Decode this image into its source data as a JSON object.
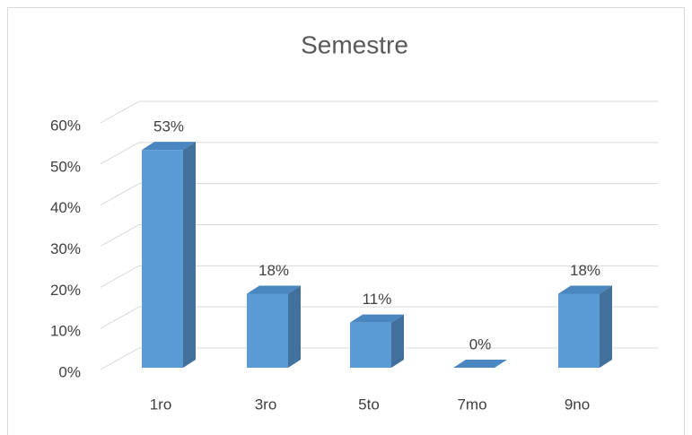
{
  "chart_data": {
    "type": "bar3d",
    "title": "Semestre",
    "categories": [
      "1ro",
      "3ro",
      "5to",
      "7mo",
      "9no"
    ],
    "values": [
      53,
      18,
      11,
      0,
      18
    ],
    "value_labels": [
      "53%",
      "18%",
      "11%",
      "0%",
      "18%"
    ],
    "color": "#5b9bd5",
    "ylim": [
      0,
      60
    ],
    "yticks": [
      {
        "value": 0,
        "label": "0%"
      },
      {
        "value": 10,
        "label": "10%"
      },
      {
        "value": 20,
        "label": "20%"
      },
      {
        "value": 30,
        "label": "30%"
      },
      {
        "value": 40,
        "label": "40%"
      },
      {
        "value": 50,
        "label": "50%"
      },
      {
        "value": 60,
        "label": "60%"
      }
    ],
    "grid": true
  }
}
